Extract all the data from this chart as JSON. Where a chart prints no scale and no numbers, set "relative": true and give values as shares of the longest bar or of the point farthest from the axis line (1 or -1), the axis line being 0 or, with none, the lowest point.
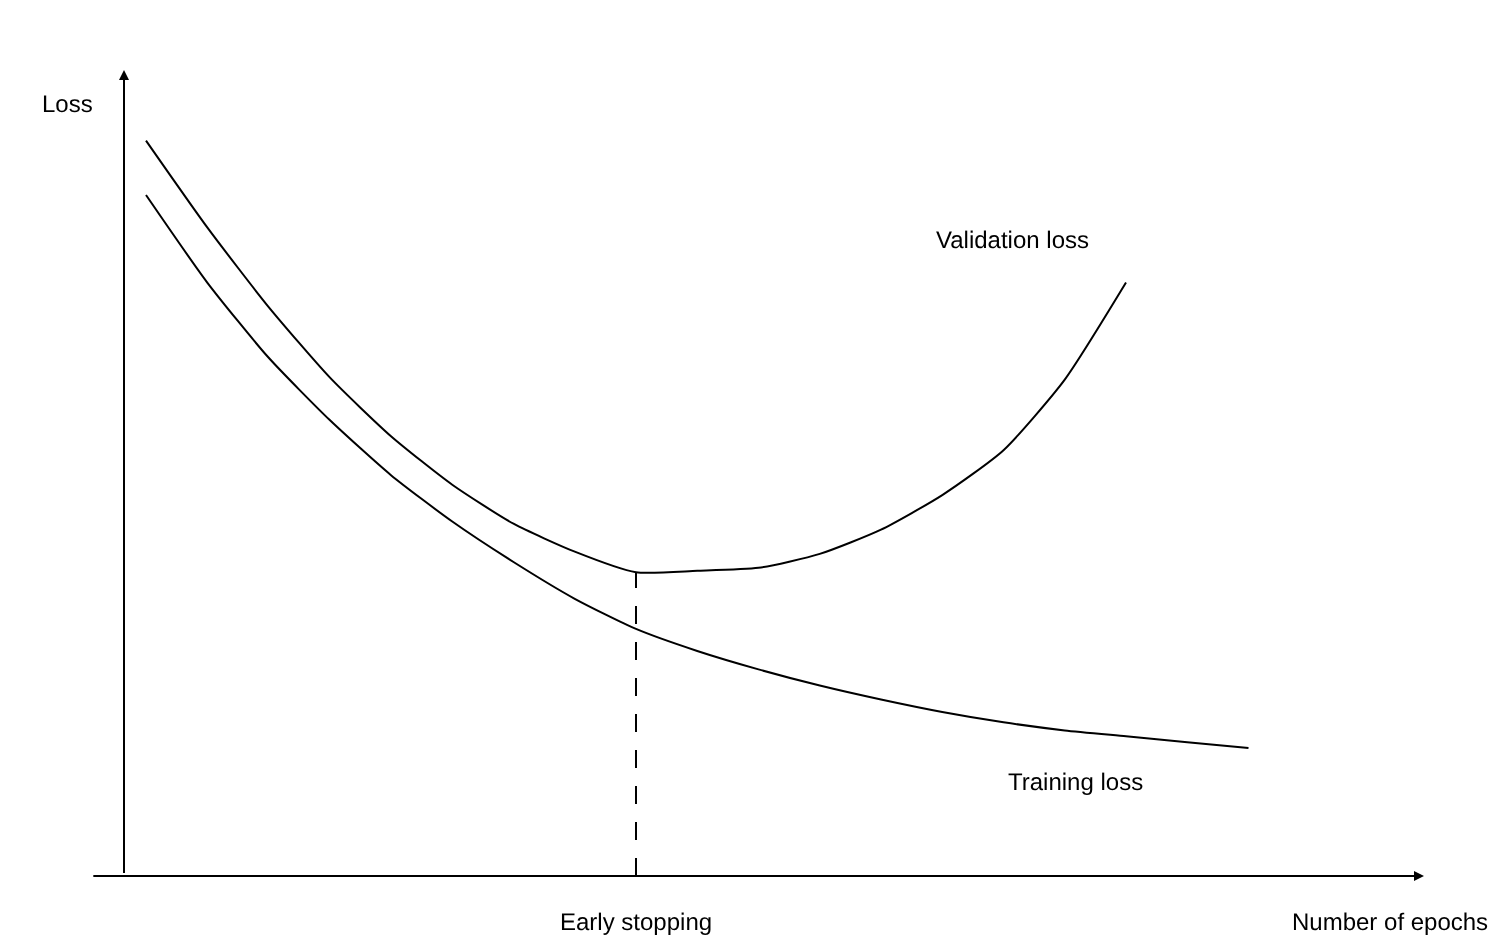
{
  "chart_data": {
    "type": "line",
    "relative": true,
    "xlabel": "Number of epochs",
    "ylabel": "Loss",
    "categories": [
      null,
      null,
      null,
      null,
      null,
      null,
      null,
      null,
      null,
      null,
      null,
      null,
      null,
      null,
      null,
      null,
      null,
      null,
      null
    ],
    "series": [
      {
        "name": "Validation loss",
        "color": "#000000",
        "values": [
          1.0,
          0.882,
          0.774,
          0.678,
          0.598,
          0.532,
          0.479,
          0.441,
          0.413,
          0.415,
          0.419,
          0.438,
          0.471,
          0.518,
          0.579,
          0.675,
          0.807,
          null,
          null
        ]
      },
      {
        "name": "Training loss",
        "color": "#000000",
        "values": [
          0.926,
          0.807,
          0.705,
          0.62,
          0.545,
          0.482,
          0.427,
          0.377,
          0.336,
          0.306,
          0.281,
          0.259,
          0.24,
          0.223,
          0.209,
          0.198,
          0.19,
          0.182,
          0.174
        ]
      }
    ],
    "annotations": [
      "Early stopping"
    ],
    "legend": false,
    "marker": "none",
    "line_style": "solid"
  }
}
